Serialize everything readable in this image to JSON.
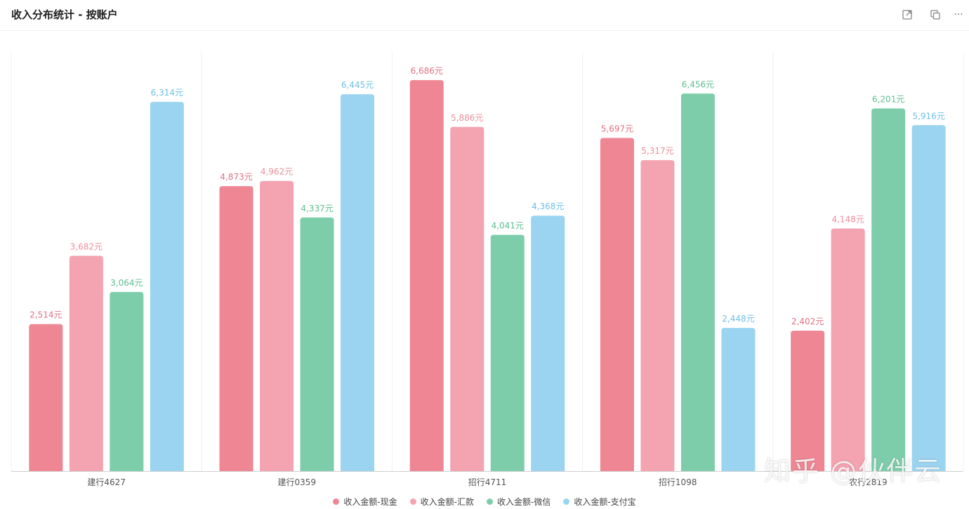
{
  "header": {
    "title": "收入分布统计 - 按账户",
    "tools": [
      {
        "name": "expand-icon"
      },
      {
        "name": "copy-icon"
      },
      {
        "name": "more-icon",
        "glyph": "···"
      }
    ]
  },
  "colors": {
    "现金": "#ee8694",
    "汇款": "#f4a3b0",
    "微信": "#7dcdab",
    "支付宝": "#9ad4f0"
  },
  "chart_data": {
    "type": "bar",
    "categories": [
      "建行4627",
      "建行0359",
      "招行4711",
      "招行1098",
      "农行2819"
    ],
    "series": [
      {
        "name": "收入金额-现金",
        "color": "#ee8694",
        "label_color": "#e07083",
        "values": [
          2514,
          4873,
          6686,
          5697,
          2402
        ]
      },
      {
        "name": "收入金额-汇款",
        "color": "#f4a3b0",
        "label_color": "#ec8e9c",
        "values": [
          3682,
          4962,
          5886,
          5317,
          4148
        ]
      },
      {
        "name": "收入金额-微信",
        "color": "#7dcdab",
        "label_color": "#5bbd92",
        "values": [
          3064,
          4337,
          4041,
          6456,
          6201
        ]
      },
      {
        "name": "收入金额-支付宝",
        "color": "#9ad4f0",
        "label_color": "#6cbfe7",
        "values": [
          6314,
          6445,
          4368,
          2448,
          5916
        ]
      }
    ],
    "value_suffix": "元",
    "ylim": [
      0,
      7000
    ],
    "grid": false,
    "legend_position": "bottom"
  },
  "watermark": "知乎 @伙伴云"
}
